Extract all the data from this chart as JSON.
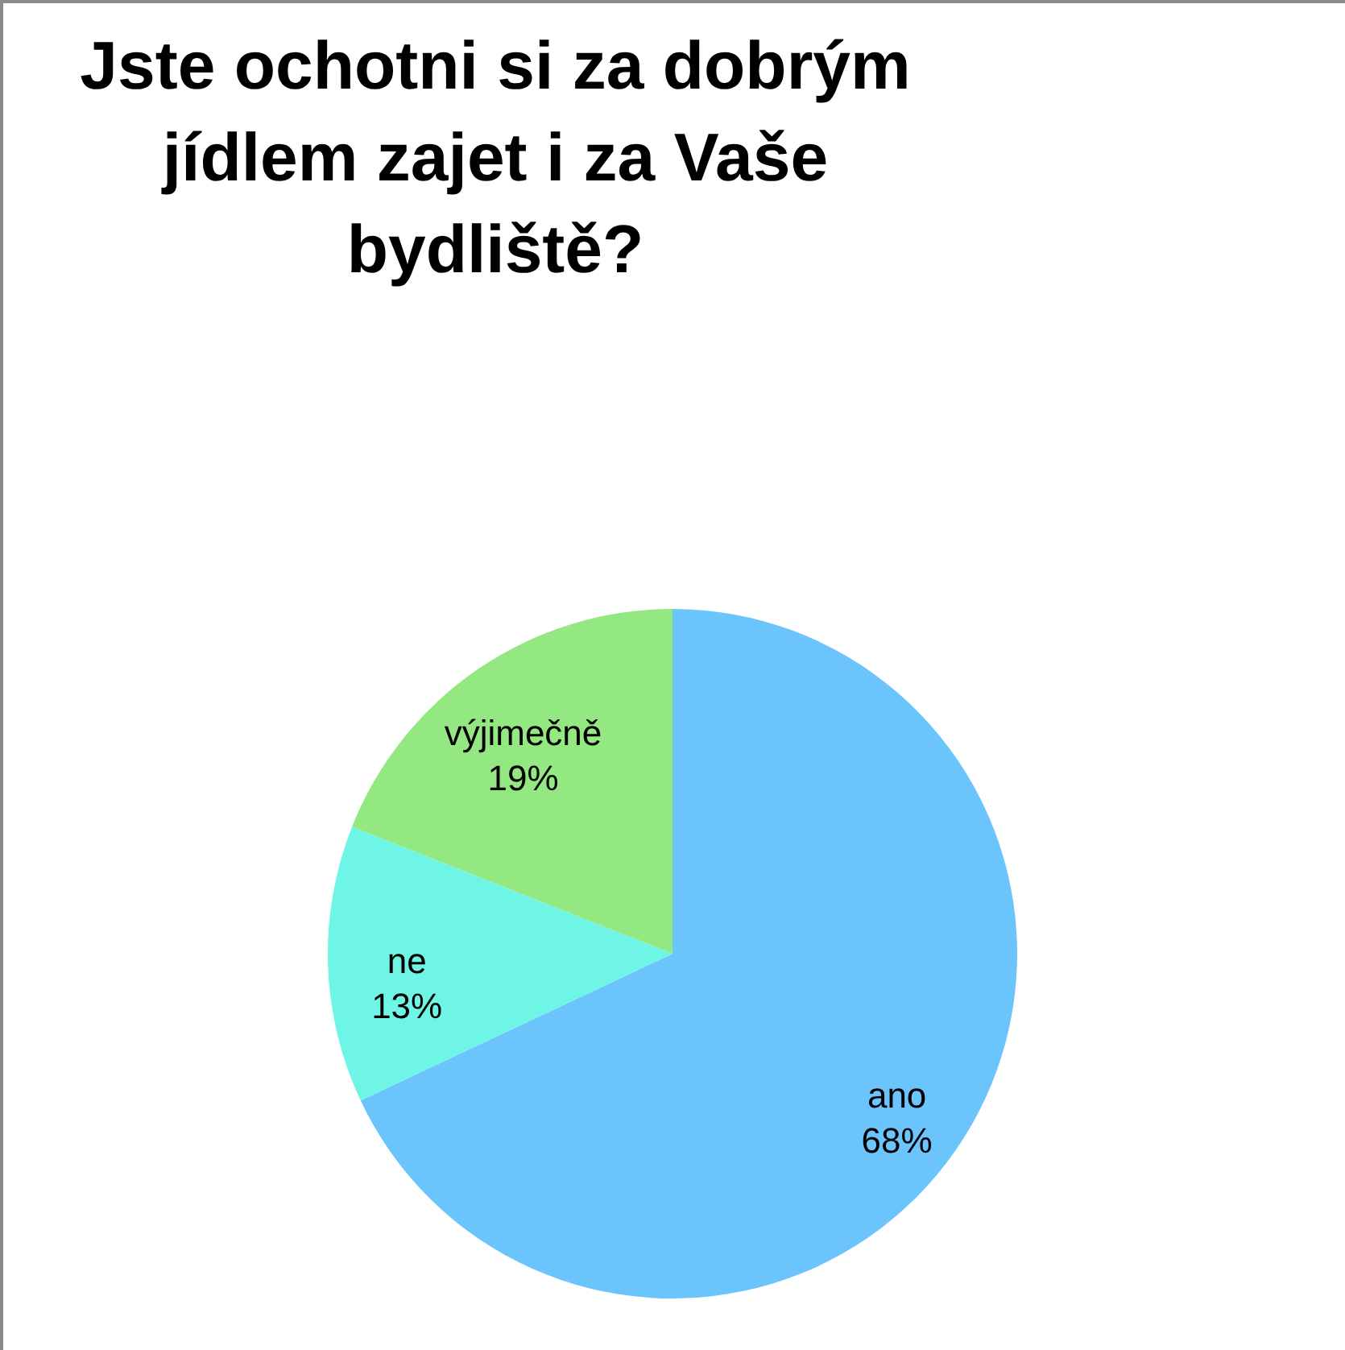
{
  "chart_data": {
    "type": "pie",
    "title": "Jste ochotni si za dobrým jídlem zajet i za Vaše bydliště?",
    "categories": [
      "ano",
      "ne",
      "výjimečně"
    ],
    "values": [
      68,
      13,
      19
    ],
    "colors": [
      "#6cc4fc",
      "#6ef5e6",
      "#94e882"
    ],
    "value_labels": [
      "68%",
      "13%",
      "19%"
    ],
    "legend": false
  }
}
